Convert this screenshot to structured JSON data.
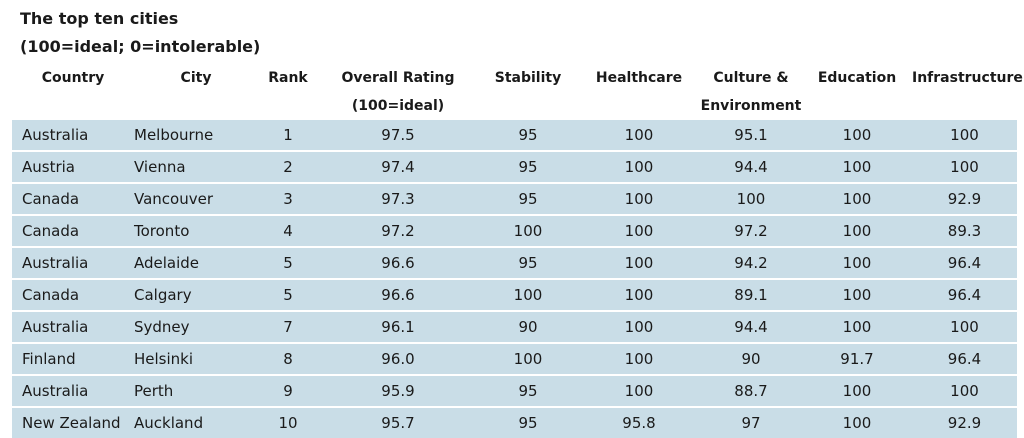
{
  "chart_data": {
    "type": "table",
    "title": "The top ten cities",
    "subtitle": "(100=ideal; 0=intolerable)",
    "columns": [
      {
        "line1": "Country",
        "line2": ""
      },
      {
        "line1": "City",
        "line2": ""
      },
      {
        "line1": "Rank",
        "line2": ""
      },
      {
        "line1": "Overall Rating",
        "line2": "(100=ideal)"
      },
      {
        "line1": "Stability",
        "line2": ""
      },
      {
        "line1": "Healthcare",
        "line2": ""
      },
      {
        "line1": "Culture &",
        "line2": "Environment"
      },
      {
        "line1": "Education",
        "line2": ""
      },
      {
        "line1": "Infrastructure",
        "line2": ""
      }
    ],
    "rows": [
      [
        "Australia",
        "Melbourne",
        "1",
        "97.5",
        "95",
        "100",
        "95.1",
        "100",
        "100"
      ],
      [
        "Austria",
        "Vienna",
        "2",
        "97.4",
        "95",
        "100",
        "94.4",
        "100",
        "100"
      ],
      [
        "Canada",
        "Vancouver",
        "3",
        "97.3",
        "95",
        "100",
        "100",
        "100",
        "92.9"
      ],
      [
        "Canada",
        "Toronto",
        "4",
        "97.2",
        "100",
        "100",
        "97.2",
        "100",
        "89.3"
      ],
      [
        "Australia",
        "Adelaide",
        "5",
        "96.6",
        "95",
        "100",
        "94.2",
        "100",
        "96.4"
      ],
      [
        "Canada",
        "Calgary",
        "5",
        "96.6",
        "100",
        "100",
        "89.1",
        "100",
        "96.4"
      ],
      [
        "Australia",
        "Sydney",
        "7",
        "96.1",
        "90",
        "100",
        "94.4",
        "100",
        "100"
      ],
      [
        "Finland",
        "Helsinki",
        "8",
        "96.0",
        "100",
        "100",
        "90",
        "91.7",
        "96.4"
      ],
      [
        "Australia",
        "Perth",
        "9",
        "95.9",
        "95",
        "100",
        "88.7",
        "100",
        "100"
      ],
      [
        "New Zealand",
        "Auckland",
        "10",
        "95.7",
        "95",
        "95.8",
        "97",
        "100",
        "92.9"
      ]
    ],
    "row_color": "#c9dde7"
  }
}
